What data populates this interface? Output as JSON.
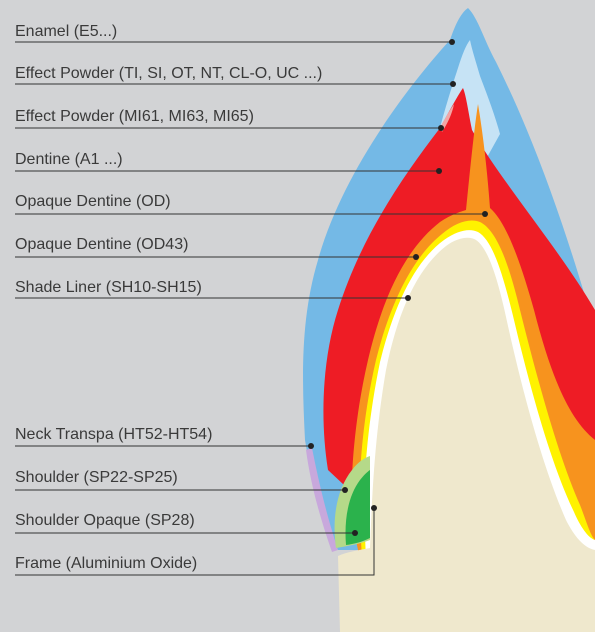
{
  "labels": [
    "Enamel (E5...)",
    "Effect Powder (TI, SI, OT, NT, CL-O, UC ...)",
    "Effect Powder (MI61, MI63, MI65)",
    "Dentine (A1 ...)",
    "Opaque Dentine (OD)",
    "Opaque Dentine (OD43)",
    "Shade Liner (SH10-SH15)",
    "Neck Transpa (HT52-HT54)",
    "Shoulder (SP22-SP25)",
    "Shoulder Opaque (SP28)",
    "Frame (Aluminium Oxide)"
  ],
  "colors": {
    "background": "#d2d3d5",
    "enamel": "#74b9e6",
    "effect_powder": "#c6e3f5",
    "effect_powder_mi": "#f2a6a6",
    "dentine": "#ee1c25",
    "opaque_dentine": "#f7931e",
    "shade_liner": "#fff200",
    "frame": "#ffffff",
    "neck_transpa": "#c8a8dc",
    "shoulder": "#b5d989",
    "shoulder_opaque": "#2bb24c",
    "stump": "#efe8cd"
  }
}
